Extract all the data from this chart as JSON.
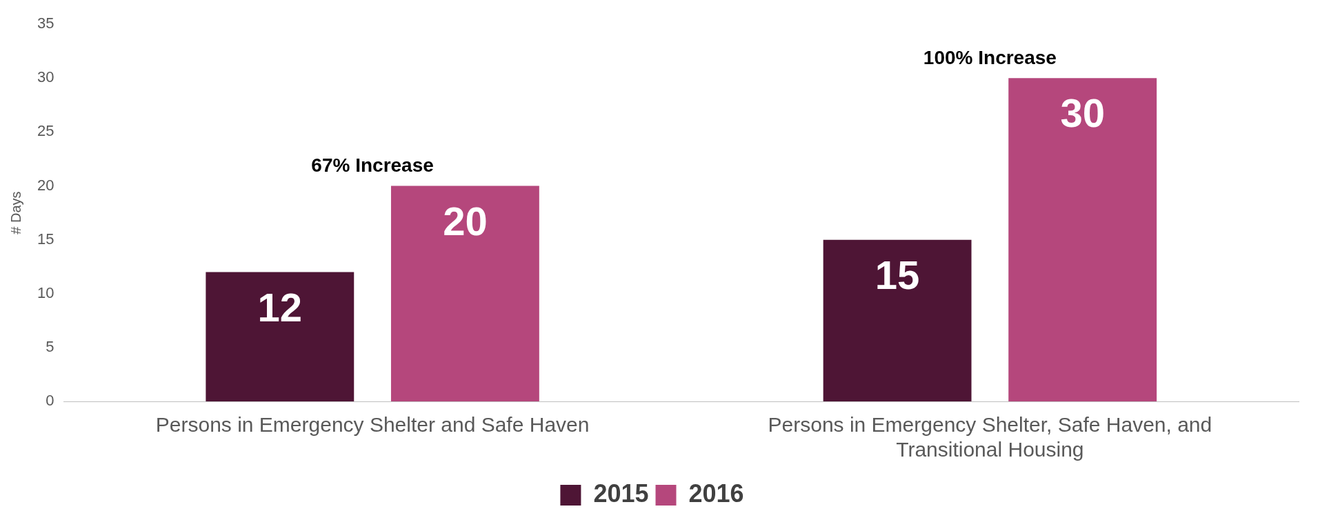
{
  "chart_data": {
    "type": "bar",
    "ylabel": "# Days",
    "categories": [
      "Persons in Emergency Shelter and Safe Haven",
      "Persons in Emergency Shelter, Safe Haven, and Transitional Housing"
    ],
    "series": [
      {
        "name": "2015",
        "color": "#4e1535",
        "values": [
          12,
          15
        ]
      },
      {
        "name": "2016",
        "color": "#b5477c",
        "values": [
          20,
          30
        ]
      }
    ],
    "ylim": [
      0,
      35
    ],
    "yticks": [
      0,
      5,
      10,
      15,
      20,
      25,
      30,
      35
    ],
    "grid": false,
    "legend": "bottom",
    "data_labels": true,
    "annotations": [
      "67% Increase",
      "100% Increase"
    ]
  }
}
